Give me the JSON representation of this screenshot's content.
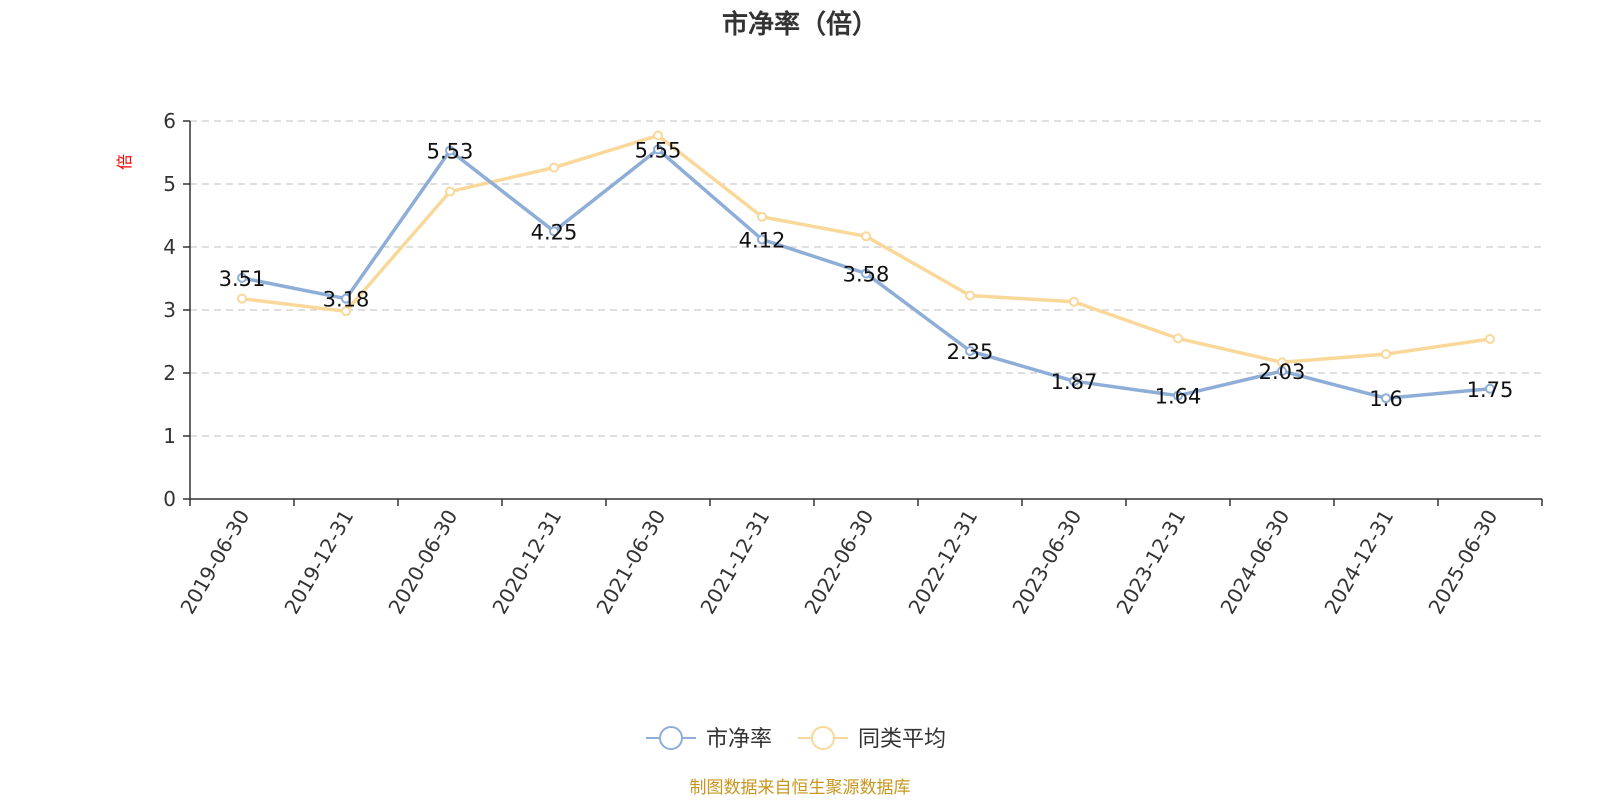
{
  "chart_data": {
    "type": "line",
    "title": "市净率（倍）",
    "ylabel": "倍",
    "xlabel": "",
    "categories": [
      "2019-06-30",
      "2019-12-31",
      "2020-06-30",
      "2020-12-31",
      "2021-06-30",
      "2021-12-31",
      "2022-06-30",
      "2022-12-31",
      "2023-06-30",
      "2023-12-31",
      "2024-06-30",
      "2024-12-31",
      "2025-06-30"
    ],
    "ylim": [
      0,
      6
    ],
    "yticks": [
      "0",
      "1",
      "2",
      "3",
      "4",
      "5",
      "6"
    ],
    "grid": true,
    "legend_position": "bottom",
    "series": [
      {
        "name": "市净率",
        "color": "#8eaed8",
        "values": [
          3.51,
          3.18,
          5.53,
          4.25,
          5.55,
          4.12,
          3.58,
          2.35,
          1.87,
          1.64,
          2.03,
          1.6,
          1.75
        ],
        "labels": [
          "3.51",
          "3.18",
          "5.53",
          "4.25",
          "5.55",
          "4.12",
          "3.58",
          "2.35",
          "1.87",
          "1.64",
          "2.03",
          "1.6",
          "1.75"
        ]
      },
      {
        "name": "同类平均",
        "color": "#f9d89a",
        "values": [
          3.18,
          2.98,
          4.88,
          5.26,
          5.77,
          4.48,
          4.17,
          3.23,
          3.13,
          2.55,
          2.17,
          2.3,
          2.54
        ]
      }
    ],
    "source": "制图数据来自恒生聚源数据库"
  },
  "colors": {
    "axis": "#333333",
    "grid": "#cccccc",
    "ylabel": "#ff0000",
    "source": "#c8961e"
  }
}
